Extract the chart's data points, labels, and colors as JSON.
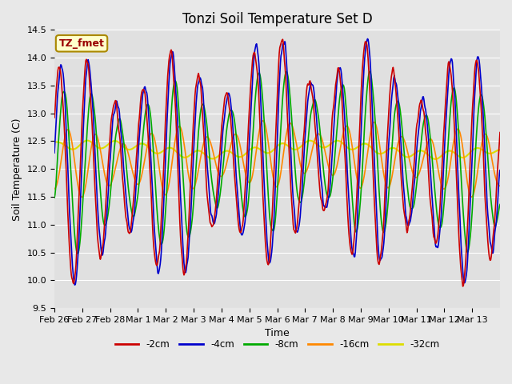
{
  "title": "Tonzi Soil Temperature Set D",
  "xlabel": "Time",
  "ylabel": "Soil Temperature (C)",
  "annotation": "TZ_fmet",
  "ylim": [
    9.5,
    14.5
  ],
  "colors": {
    "-2cm": "#cc0000",
    "-4cm": "#0000cc",
    "-8cm": "#00aa00",
    "-16cm": "#ff8800",
    "-32cm": "#dddd00"
  },
  "x_tick_labels": [
    "Feb 26",
    "Feb 27",
    "Feb 28",
    "Mar 1",
    "Mar 2",
    "Mar 3",
    "Mar 4",
    "Mar 5",
    "Mar 6",
    "Mar 7",
    "Mar 8",
    "Mar 9",
    "Mar 10",
    "Mar 11",
    "Mar 12",
    "Mar 13"
  ],
  "background_color": "#e0e0e0",
  "grid_color": "#ffffff",
  "fig_facecolor": "#e8e8e8",
  "title_fontsize": 12,
  "axis_fontsize": 9,
  "tick_fontsize": 8
}
